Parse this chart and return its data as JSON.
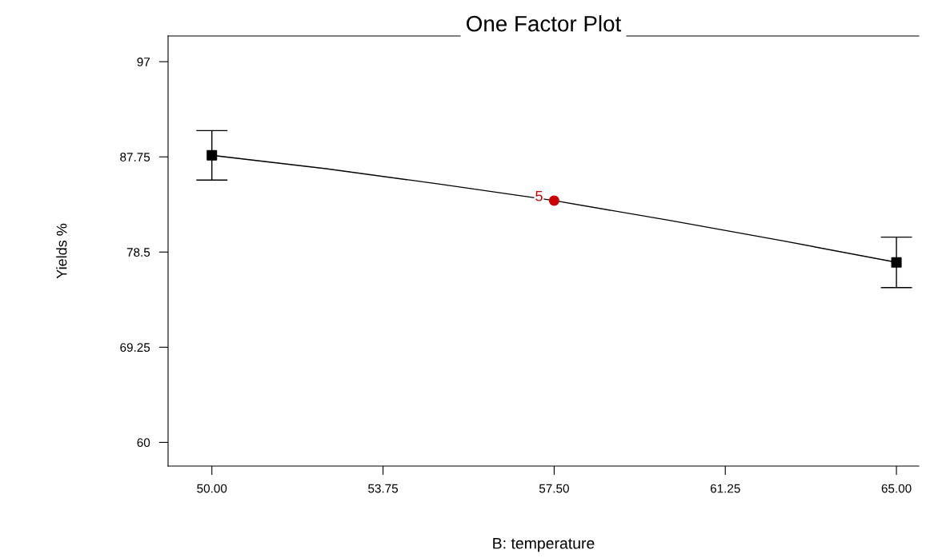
{
  "chart_data": {
    "type": "line",
    "title": "One Factor Plot",
    "xlabel": "B: temperature",
    "ylabel": "Yields %",
    "series": [
      {
        "color": "#000000",
        "x": [
          50,
          52.5,
          55,
          57.5,
          60,
          62.5,
          65
        ],
        "values": [
          87.9,
          86.6,
          85.1,
          83.5,
          81.6,
          79.6,
          77.5
        ],
        "marker": "none"
      },
      {
        "type": "scatter",
        "color": "#000000",
        "x": [
          50,
          65
        ],
        "values": [
          87.9,
          77.5
        ],
        "errors": [
          2.4,
          2.45
        ],
        "marker": "square"
      },
      {
        "type": "scatter",
        "color": "#cc0000",
        "x": [
          57.5
        ],
        "values": [
          83.5
        ],
        "marker": "circle"
      }
    ],
    "annotations": [
      {
        "text": "5",
        "x": 57.5,
        "y": 83.5
      }
    ],
    "xlim": [
      49.04,
      65.49
    ],
    "ylim": [
      57.7,
      99.5
    ],
    "xticks": [
      {
        "value": 50,
        "label": "50.00"
      },
      {
        "value": 53.75,
        "label": "53.75"
      },
      {
        "value": 57.5,
        "label": "57.50"
      },
      {
        "value": 61.25,
        "label": "61.25"
      },
      {
        "value": 65,
        "label": "65.00"
      }
    ],
    "yticks": [
      60,
      69.25,
      78.5,
      87.75,
      97
    ],
    "grid": false,
    "legend": false
  }
}
